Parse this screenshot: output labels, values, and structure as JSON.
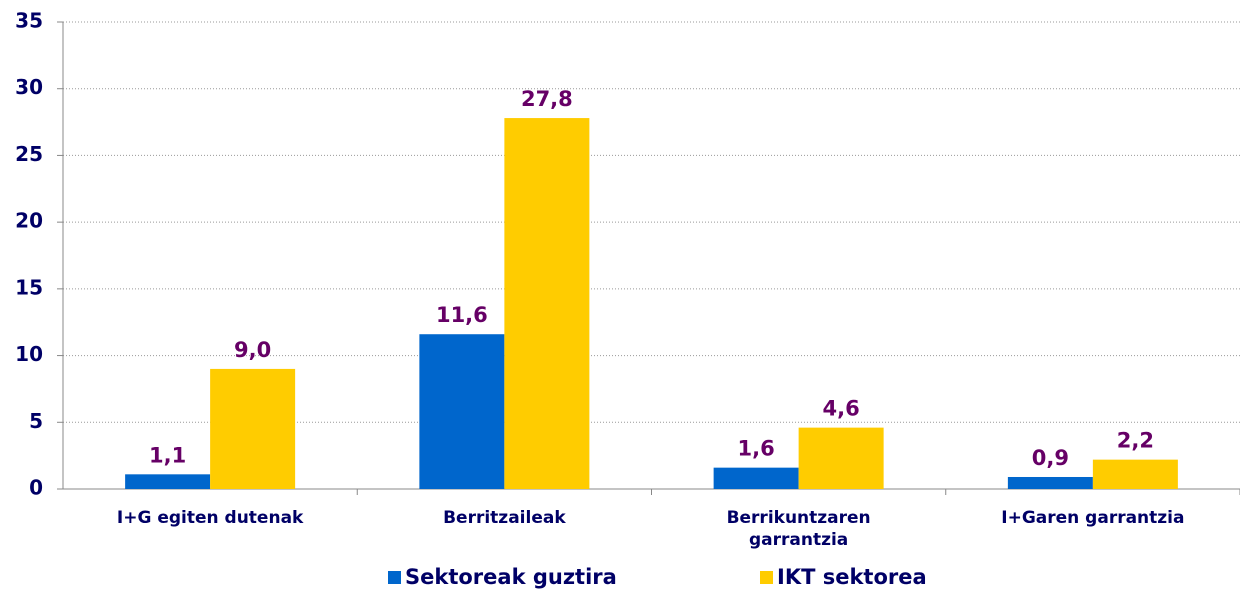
{
  "chart_data": {
    "type": "bar",
    "categories": [
      "I+G egiten dutenak",
      "Berritzaileak",
      "Berrikuntzaren garrantzia",
      "I+Garen garrantzia"
    ],
    "series": [
      {
        "name": "Sektoreak guztira",
        "color": "#0066cc",
        "values": [
          1.1,
          11.6,
          1.6,
          0.9
        ],
        "value_labels": [
          "1,1",
          "11,6",
          "1,6",
          "0,9"
        ]
      },
      {
        "name": "IKT sektorea",
        "color": "#ffcc00",
        "values": [
          9.0,
          27.8,
          4.6,
          2.2
        ],
        "value_labels": [
          "9,0",
          "27,8",
          "4,6",
          "2,2"
        ]
      }
    ],
    "ylim": [
      0,
      35
    ],
    "yticks": [
      0,
      5,
      10,
      15,
      20,
      25,
      30,
      35
    ],
    "grid": true,
    "legend": "bottom"
  }
}
